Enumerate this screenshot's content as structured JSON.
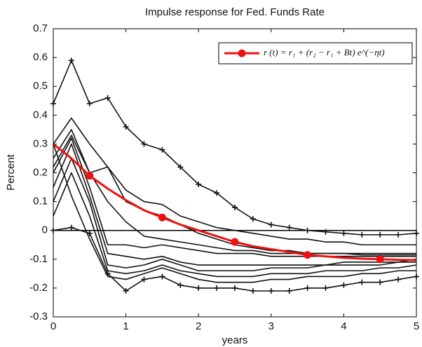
{
  "chart_data": {
    "type": "line",
    "title": "Impulse response for Fed. Funds Rate",
    "x_label": "years",
    "y_label": "Percent",
    "x": [
      0,
      0.25,
      0.5,
      0.75,
      1,
      1.25,
      1.5,
      1.75,
      2,
      2.25,
      2.5,
      2.75,
      3,
      3.25,
      3.5,
      3.75,
      4,
      4.25,
      4.5,
      4.75,
      5
    ],
    "xlim": [
      0,
      5
    ],
    "xticks": [
      0,
      1,
      2,
      3,
      4,
      5
    ],
    "ylim": [
      -0.3,
      0.7
    ],
    "yticks": [
      -0.3,
      -0.2,
      -0.1,
      0,
      0.1,
      0.2,
      0.3,
      0.4,
      0.5,
      0.6,
      0.7
    ],
    "zero_line": true,
    "legend_position": "upper right",
    "series": [
      {
        "color": "#111111",
        "marker": "+",
        "values": [
          0.44,
          0.59,
          0.44,
          0.46,
          0.36,
          0.3,
          0.28,
          0.22,
          0.16,
          0.13,
          0.08,
          0.04,
          0.02,
          0.01,
          0.0,
          -0.005,
          -0.01,
          -0.015,
          -0.015,
          -0.015,
          -0.01
        ]
      },
      {
        "color": "#111111",
        "marker": "+",
        "values": [
          0.0,
          0.01,
          -0.01,
          -0.15,
          -0.21,
          -0.17,
          -0.16,
          -0.19,
          -0.2,
          -0.2,
          -0.2,
          -0.21,
          -0.21,
          -0.21,
          -0.2,
          -0.2,
          -0.19,
          -0.18,
          -0.18,
          -0.17,
          -0.16
        ]
      },
      {
        "color": "#111111",
        "values": [
          0.3,
          0.39,
          0.3,
          0.22,
          0.14,
          0.1,
          0.09,
          0.05,
          0.03,
          0.01,
          0.0,
          -0.01,
          -0.02,
          -0.03,
          -0.03,
          -0.04,
          -0.04,
          -0.05,
          -0.05,
          -0.05,
          -0.05
        ]
      },
      {
        "color": "#111111",
        "values": [
          0.25,
          0.35,
          0.2,
          0.22,
          0.1,
          0.07,
          0.05,
          0.02,
          -0.01,
          -0.03,
          -0.05,
          -0.06,
          -0.07,
          -0.07,
          -0.08,
          -0.08,
          -0.08,
          -0.085,
          -0.085,
          -0.085,
          -0.085
        ]
      },
      {
        "color": "#111111",
        "values": [
          0.2,
          0.32,
          0.15,
          -0.05,
          -0.05,
          -0.06,
          -0.05,
          -0.06,
          -0.07,
          -0.08,
          -0.08,
          -0.08,
          -0.09,
          -0.09,
          -0.09,
          -0.09,
          -0.09,
          -0.09,
          -0.09,
          -0.09,
          -0.09
        ]
      },
      {
        "color": "#111111",
        "values": [
          0.15,
          0.3,
          0.12,
          -0.08,
          -0.09,
          -0.1,
          -0.09,
          -0.11,
          -0.12,
          -0.12,
          -0.12,
          -0.12,
          -0.12,
          -0.12,
          -0.12,
          -0.12,
          -0.11,
          -0.11,
          -0.11,
          -0.11,
          -0.1
        ]
      },
      {
        "color": "#111111",
        "values": [
          0.1,
          0.25,
          0.1,
          -0.12,
          -0.13,
          -0.12,
          -0.1,
          -0.12,
          -0.14,
          -0.14,
          -0.14,
          -0.14,
          -0.13,
          -0.13,
          -0.13,
          -0.12,
          -0.12,
          -0.12,
          -0.12,
          -0.11,
          -0.11
        ]
      },
      {
        "color": "#111111",
        "values": [
          0.05,
          0.2,
          0.05,
          -0.14,
          -0.15,
          -0.14,
          -0.12,
          -0.14,
          -0.15,
          -0.16,
          -0.16,
          -0.16,
          -0.15,
          -0.15,
          -0.15,
          -0.14,
          -0.14,
          -0.14,
          -0.13,
          -0.13,
          -0.12
        ]
      },
      {
        "color": "#111111",
        "values": [
          0.3,
          0.12,
          -0.03,
          -0.16,
          -0.17,
          -0.15,
          -0.13,
          -0.15,
          -0.17,
          -0.18,
          -0.18,
          -0.18,
          -0.17,
          -0.17,
          -0.16,
          -0.16,
          -0.16,
          -0.15,
          -0.15,
          -0.14,
          -0.14
        ]
      },
      {
        "color": "#111111",
        "values": [
          0.22,
          0.33,
          0.2,
          0.1,
          0.03,
          -0.02,
          -0.03,
          -0.04,
          -0.05,
          -0.06,
          -0.07,
          -0.07,
          -0.08,
          -0.08,
          -0.08,
          -0.08,
          -0.08,
          -0.08,
          -0.08,
          -0.08,
          -0.08
        ]
      },
      {
        "name": "r (t) = r₁ + (r₂ − r₁ + Bt) e^(−ηt)",
        "color": "#ee1111",
        "marker": "o",
        "values": [
          0.3,
          0.25,
          0.19,
          0.145,
          0.105,
          0.07,
          0.045,
          0.02,
          0.0,
          -0.02,
          -0.04,
          -0.055,
          -0.065,
          -0.075,
          -0.085,
          -0.09,
          -0.095,
          -0.098,
          -0.1,
          -0.102,
          -0.103
        ]
      }
    ]
  }
}
